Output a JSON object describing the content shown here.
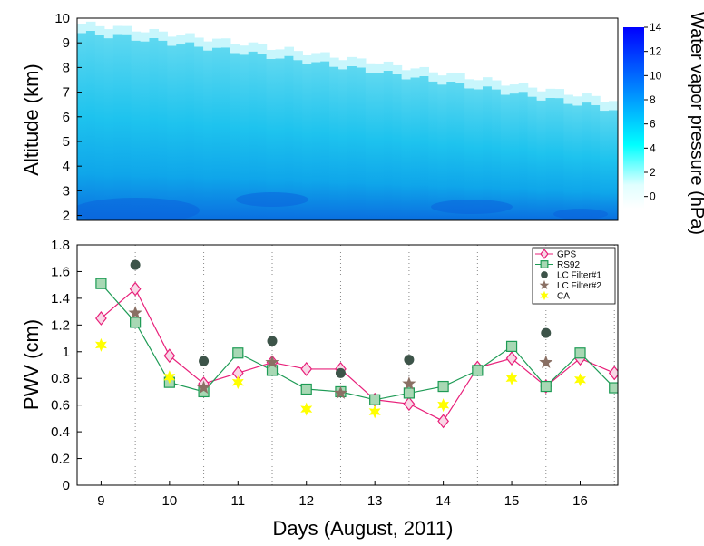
{
  "chart_data": [
    {
      "type": "heatmap",
      "title": "",
      "xlabel": "",
      "ylabel": "Altitude (km)",
      "ylim": [
        1.8,
        10
      ],
      "yticks": [
        "2",
        "3",
        "4",
        "5",
        "6",
        "7",
        "8",
        "9",
        "10"
      ],
      "colorbar": {
        "label": "Water vapor pressure (hPa)",
        "range": [
          -1,
          14
        ],
        "ticks": [
          "0",
          "2",
          "4",
          "6",
          "8",
          "10",
          "12",
          "14"
        ],
        "colors": [
          "#ffffff",
          "#00ffff",
          "#0000ff"
        ]
      }
    },
    {
      "type": "line",
      "xlabel": "Days (August, 2011)",
      "ylabel": "PWV (cm)",
      "xlim": [
        8.65,
        16.55
      ],
      "ylim": [
        0,
        1.8
      ],
      "categories": [
        "9",
        "10",
        "11",
        "12",
        "13",
        "14",
        "15",
        "16"
      ],
      "yticks": [
        "0",
        "0.2",
        "0.4",
        "0.6",
        "0.8",
        "1",
        "1.2",
        "1.4",
        "1.6",
        "1.8"
      ],
      "legend_position": "top-right",
      "series": [
        {
          "name": "GPS",
          "color": "#e8207a",
          "fill": "#f8d8e6",
          "marker": "diamond",
          "line": true,
          "x": [
            9,
            9.5,
            10,
            10.5,
            11,
            11.5,
            12,
            12.5,
            13,
            13.5,
            14,
            14.5,
            15,
            15.5,
            16,
            16.5
          ],
          "y": [
            1.25,
            1.47,
            0.97,
            0.76,
            0.84,
            0.92,
            0.87,
            0.87,
            0.64,
            0.61,
            0.48,
            0.88,
            0.95,
            0.74,
            0.95,
            0.84
          ]
        },
        {
          "name": "RS92",
          "color": "#1e9b55",
          "fill": "#a8d8b4",
          "marker": "square",
          "line": true,
          "x": [
            9,
            9.5,
            10,
            10.5,
            11,
            11.5,
            12,
            12.5,
            13,
            13.5,
            14,
            14.5,
            15,
            15.5,
            16,
            16.5
          ],
          "y": [
            1.51,
            1.22,
            0.77,
            0.7,
            0.99,
            0.86,
            0.72,
            0.7,
            0.64,
            0.69,
            0.74,
            0.86,
            1.04,
            0.74,
            0.99,
            0.73
          ]
        },
        {
          "name": "LC Filter#1",
          "color": "#3d5449",
          "marker": "circle",
          "line": false,
          "x": [
            9.5,
            10.5,
            11.5,
            12.5,
            13.5,
            15.5
          ],
          "y": [
            1.65,
            0.93,
            1.08,
            0.84,
            0.94,
            1.14
          ]
        },
        {
          "name": "LC Filter#2",
          "color": "#8a7064",
          "marker": "star",
          "line": false,
          "x": [
            9.5,
            10.5,
            11.5,
            12.5,
            13.5,
            15.5
          ],
          "y": [
            1.29,
            0.73,
            0.92,
            0.69,
            0.76,
            0.92
          ]
        },
        {
          "name": "CA",
          "color": "#ffff00",
          "marker": "burst",
          "line": false,
          "x": [
            9,
            10,
            11,
            12,
            13,
            14,
            15,
            16
          ],
          "y": [
            1.05,
            0.81,
            0.77,
            0.57,
            0.55,
            0.6,
            0.8,
            0.79
          ]
        }
      ]
    }
  ]
}
